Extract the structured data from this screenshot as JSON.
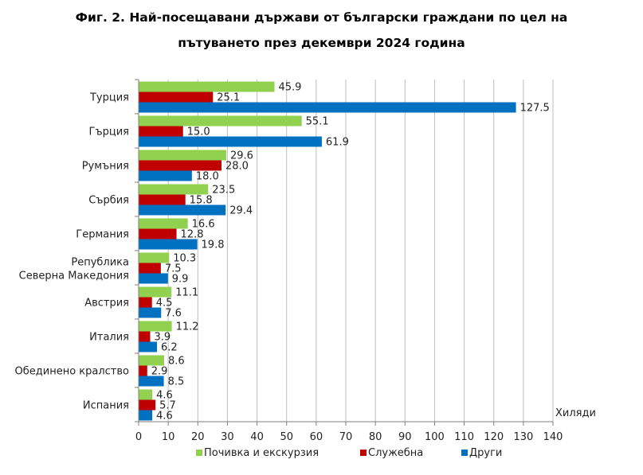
{
  "chart_data": {
    "type": "bar",
    "orientation": "horizontal",
    "title_line1": "Фиг. 2. Най-посещавани държави от български граждани по цел на",
    "title_line2": "пътуването през декември 2024 година",
    "xlabel": "Хиляди",
    "xlim": [
      0,
      140
    ],
    "xticks": [
      "0",
      "10",
      "20",
      "30",
      "40",
      "50",
      "60",
      "70",
      "80",
      "90",
      "100",
      "110",
      "120",
      "130",
      "140"
    ],
    "grid": true,
    "legend_position": "bottom",
    "categories": [
      [
        "Турция"
      ],
      [
        "Гърция"
      ],
      [
        "Румъния"
      ],
      [
        "Сърбия"
      ],
      [
        "Германия"
      ],
      [
        "Република",
        "Северна Македония"
      ],
      [
        "Австрия"
      ],
      [
        "Италия"
      ],
      [
        "Обединено кралство"
      ],
      [
        "Испания"
      ]
    ],
    "series": [
      {
        "name": "Почивка и екскурзия",
        "color": "#92d050",
        "values": [
          45.9,
          55.1,
          29.6,
          23.5,
          16.6,
          10.3,
          11.1,
          11.2,
          8.6,
          4.6
        ],
        "labels": [
          "45.9",
          "55.1",
          "29.6",
          "23.5",
          "16.6",
          "10.3",
          "11.1",
          "11.2",
          "8.6",
          "4.6"
        ]
      },
      {
        "name": "Служебна",
        "color": "#c00000",
        "values": [
          25.1,
          15.0,
          28.0,
          15.8,
          12.8,
          7.5,
          4.5,
          3.9,
          2.9,
          5.7
        ],
        "labels": [
          "25.1",
          "15.0",
          "28.0",
          "15.8",
          "12.8",
          "7.5",
          "4.5",
          "3.9",
          "2.9",
          "5.7"
        ]
      },
      {
        "name": "Други",
        "color": "#0070c0",
        "values": [
          127.5,
          61.9,
          18.0,
          29.4,
          19.8,
          9.9,
          7.6,
          6.2,
          8.5,
          4.6
        ],
        "labels": [
          "127.5",
          "61.9",
          "18.0",
          "29.4",
          "19.8",
          "9.9",
          "7.6",
          "6.2",
          "8.5",
          "4.6"
        ]
      }
    ]
  }
}
